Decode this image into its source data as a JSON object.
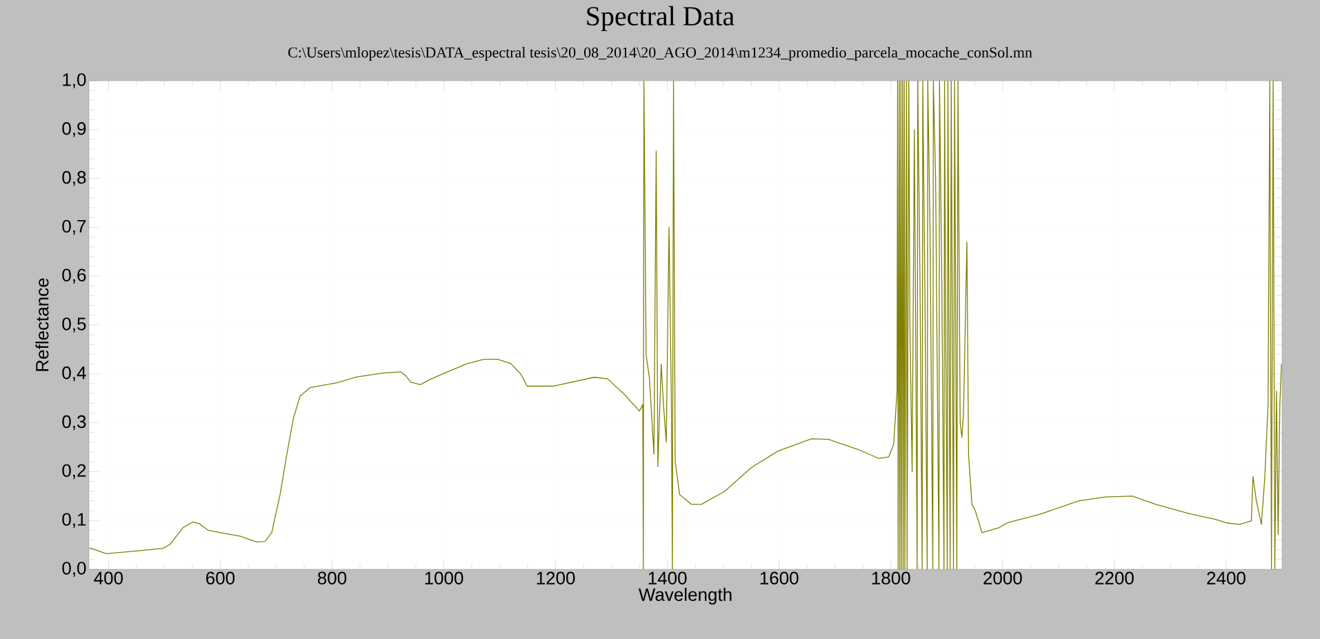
{
  "chart_data": {
    "type": "line",
    "title": "Spectral Data",
    "subtitle": "C:\\Users\\mlopez\\tesis\\DATA_espectral tesis\\20_08_2014\\20_AGO_2014\\m1234_promedio_parcela_mocache_conSol.mn",
    "xlabel": "Wavelength",
    "ylabel": "Reflectance",
    "color": "#808000",
    "x": [
      366,
      396,
      444,
      498,
      510,
      533,
      551,
      563,
      578,
      605,
      635,
      665,
      680,
      692,
      707,
      719,
      731,
      743,
      761,
      809,
      845,
      893,
      923,
      932,
      941,
      958,
      976,
      1000,
      1042,
      1072,
      1096,
      1120,
      1138,
      1149,
      1197,
      1269,
      1293,
      1323,
      1350,
      1356,
      1357,
      1358,
      1362,
      1368,
      1376,
      1380,
      1383,
      1389,
      1393,
      1398,
      1403,
      1407,
      1409,
      1411,
      1414,
      1422,
      1443,
      1461,
      1503,
      1550,
      1598,
      1658,
      1688,
      1742,
      1778,
      1796,
      1805,
      1811,
      1812,
      1813,
      1815,
      1816,
      1818,
      1819,
      1821,
      1822,
      1824,
      1825,
      1828,
      1829,
      1832,
      1834,
      1838,
      1842,
      1847,
      1848,
      1852,
      1856,
      1857,
      1861,
      1865,
      1866,
      1870,
      1875,
      1876,
      1880,
      1886,
      1887,
      1891,
      1895,
      1896,
      1898,
      1901,
      1902,
      1906,
      1908,
      1912,
      1914,
      1918,
      1920,
      1924,
      1927,
      1930,
      1936,
      1939,
      1945,
      1951,
      1963,
      1993,
      2008,
      2065,
      2136,
      2184,
      2232,
      2274,
      2334,
      2382,
      2400,
      2424,
      2445,
      2448,
      2454,
      2463,
      2469,
      2475,
      2478,
      2481,
      2484,
      2487,
      2490,
      2493,
      2496,
      2499
    ],
    "values": [
      0.044,
      0.032,
      0.037,
      0.043,
      0.051,
      0.085,
      0.097,
      0.093,
      0.08,
      0.074,
      0.068,
      0.056,
      0.057,
      0.075,
      0.153,
      0.235,
      0.31,
      0.355,
      0.372,
      0.382,
      0.394,
      0.402,
      0.404,
      0.396,
      0.383,
      0.378,
      0.389,
      0.401,
      0.421,
      0.43,
      0.43,
      0.421,
      0.399,
      0.375,
      0.375,
      0.393,
      0.39,
      0.358,
      0.324,
      0.337,
      0.0,
      1.0,
      0.44,
      0.39,
      0.235,
      0.856,
      0.21,
      0.42,
      0.338,
      0.26,
      0.7,
      0.36,
      0.0,
      1.0,
      0.22,
      0.153,
      0.133,
      0.133,
      0.16,
      0.208,
      0.242,
      0.267,
      0.266,
      0.245,
      0.227,
      0.23,
      0.256,
      0.365,
      1.0,
      0.0,
      1.0,
      0.0,
      1.0,
      0.0,
      1.0,
      0.0,
      1.0,
      0.0,
      1.0,
      0.0,
      1.0,
      0.5,
      0.2,
      0.9,
      0.0,
      1.0,
      0.6,
      0.0,
      1.0,
      0.55,
      0.0,
      1.0,
      0.7,
      0.0,
      1.0,
      0.8,
      0.0,
      1.0,
      0.6,
      0.0,
      1.0,
      0.5,
      0.0,
      1.0,
      0.0,
      1.0,
      0.0,
      1.0,
      0.0,
      1.0,
      0.3,
      0.27,
      0.32,
      0.67,
      0.235,
      0.133,
      0.12,
      0.075,
      0.085,
      0.095,
      0.112,
      0.14,
      0.148,
      0.15,
      0.133,
      0.114,
      0.102,
      0.095,
      0.092,
      0.099,
      0.19,
      0.14,
      0.092,
      0.187,
      0.338,
      1.0,
      0.0,
      1.0,
      0.0,
      0.365,
      0.071,
      0.338,
      0.42
    ],
    "xlim": [
      365,
      2500
    ],
    "ylim": [
      0,
      1
    ],
    "xticks": [
      400,
      600,
      800,
      1000,
      1200,
      1400,
      1600,
      1800,
      2000,
      2200,
      2400
    ],
    "yticks": [
      {
        "value": 0,
        "label": "0,0"
      },
      {
        "value": 0.1,
        "label": "0,1"
      },
      {
        "value": 0.2,
        "label": "0,2"
      },
      {
        "value": 0.3,
        "label": "0,3"
      },
      {
        "value": 0.4,
        "label": "0,4"
      },
      {
        "value": 0.5,
        "label": "0,5"
      },
      {
        "value": 0.6,
        "label": "0,6"
      },
      {
        "value": 0.7,
        "label": "0,7"
      },
      {
        "value": 0.8,
        "label": "0,8"
      },
      {
        "value": 0.9,
        "label": "0,9"
      },
      {
        "value": 1.0,
        "label": "1,0"
      }
    ],
    "grid": true
  }
}
